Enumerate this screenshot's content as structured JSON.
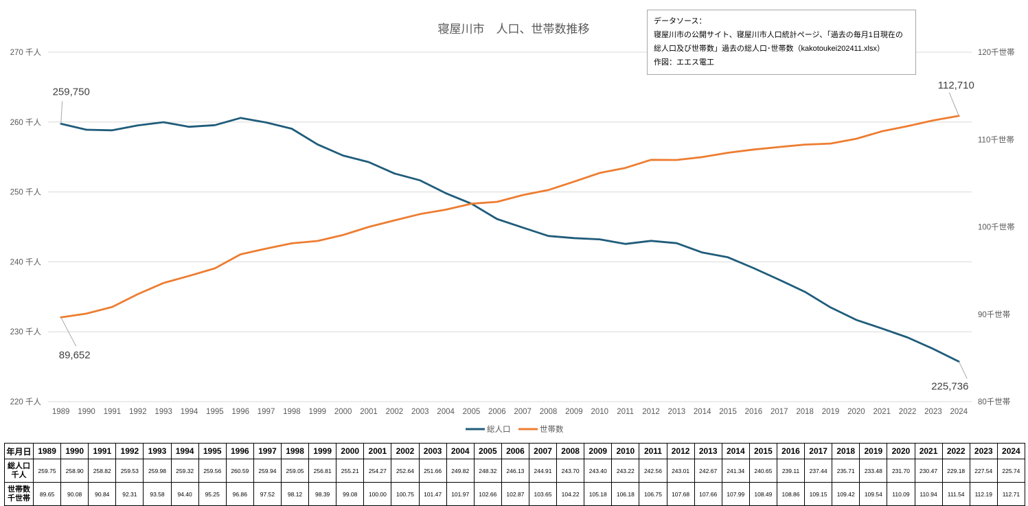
{
  "chart_data": {
    "type": "line",
    "title": "寝屋川市　人口、世帯数推移",
    "categories": [
      "1989",
      "1990",
      "1991",
      "1992",
      "1993",
      "1994",
      "1995",
      "1996",
      "1997",
      "1998",
      "1999",
      "2000",
      "2001",
      "2002",
      "2003",
      "2004",
      "2005",
      "2006",
      "2007",
      "2008",
      "2009",
      "2010",
      "2011",
      "2012",
      "2013",
      "2014",
      "2015",
      "2016",
      "2017",
      "2018",
      "2019",
      "2020",
      "2021",
      "2022",
      "2023",
      "2024"
    ],
    "series": [
      {
        "name": "総人口",
        "axis": "left",
        "color": "#1f5c7a",
        "values": [
          259.75,
          258.9,
          258.82,
          259.53,
          259.98,
          259.32,
          259.56,
          260.59,
          259.94,
          259.05,
          256.81,
          255.21,
          254.27,
          252.64,
          251.66,
          249.82,
          248.32,
          246.13,
          244.91,
          243.7,
          243.4,
          243.22,
          242.56,
          243.01,
          242.67,
          241.34,
          240.65,
          239.11,
          237.44,
          235.71,
          233.48,
          231.7,
          230.47,
          229.18,
          227.54,
          225.74
        ]
      },
      {
        "name": "世帯数",
        "axis": "right",
        "color": "#ed7d31",
        "values": [
          89.65,
          90.08,
          90.84,
          92.31,
          93.58,
          94.4,
          95.25,
          96.86,
          97.52,
          98.12,
          98.39,
          99.08,
          100.0,
          100.75,
          101.47,
          101.97,
          102.66,
          102.87,
          103.65,
          104.22,
          105.18,
          106.18,
          106.75,
          107.68,
          107.66,
          107.99,
          108.49,
          108.86,
          109.15,
          109.42,
          109.54,
          110.09,
          110.94,
          111.54,
          112.19,
          112.71
        ]
      }
    ],
    "y_left": {
      "ylim": [
        220,
        270
      ],
      "ticks": [
        270,
        260,
        250,
        240,
        230,
        220
      ],
      "unit": "千人",
      "tick_labels": [
        "270 千人",
        "260 千人",
        "250 千人",
        "240 千人",
        "230 千人",
        "220 千人"
      ]
    },
    "y_right": {
      "ylim": [
        80,
        120
      ],
      "ticks": [
        120,
        110,
        100,
        90,
        80
      ],
      "unit": "千世帯",
      "tick_labels": [
        "120千世帯",
        "110千世帯",
        "100千世帯",
        "90千世帯",
        "80千世帯"
      ]
    },
    "annotations": [
      {
        "series": 0,
        "index": 0,
        "text": "259,750"
      },
      {
        "series": 1,
        "index": 0,
        "text": "89,652"
      },
      {
        "series": 1,
        "index": 35,
        "text": "112,710"
      },
      {
        "series": 0,
        "index": 35,
        "text": "225,736"
      }
    ],
    "grid": true,
    "legend": "bottom"
  },
  "source_box": {
    "line1": "データソース：",
    "line2": "寝屋川市の公開サイト、寝屋川市人口統計ページ、「過去の毎月1日現在の",
    "line3": "総人口及び世帯数」過去の総人口･世帯数（kakotoukei202411.xlsx）",
    "line4": "作図：エエス電工"
  },
  "table": {
    "header_label": "年月日",
    "row1_label_a": "総人口",
    "row1_label_b": "千人",
    "row2_label_a": "世帯数",
    "row2_label_b": "千世帯",
    "population": [
      "259.75",
      "258.90",
      "258.82",
      "259.53",
      "259.98",
      "259.32",
      "259.56",
      "260.59",
      "259.94",
      "259.05",
      "256.81",
      "255.21",
      "254.27",
      "252.64",
      "251.66",
      "249.82",
      "248.32",
      "246.13",
      "244.91",
      "243.70",
      "243.40",
      "243.22",
      "242.56",
      "243.01",
      "242.67",
      "241.34",
      "240.65",
      "239.11",
      "237.44",
      "235.71",
      "233.48",
      "231.70",
      "230.47",
      "229.18",
      "227.54",
      "225.74"
    ],
    "households": [
      "89.65",
      "90.08",
      "90.84",
      "92.31",
      "93.58",
      "94.40",
      "95.25",
      "96.86",
      "97.52",
      "98.12",
      "98.39",
      "99.08",
      "100.00",
      "100.75",
      "101.47",
      "101.97",
      "102.66",
      "102.87",
      "103.65",
      "104.22",
      "105.18",
      "106.18",
      "106.75",
      "107.68",
      "107.66",
      "107.99",
      "108.49",
      "108.86",
      "109.15",
      "109.42",
      "109.54",
      "110.09",
      "110.94",
      "111.54",
      "112.19",
      "112.71"
    ]
  }
}
